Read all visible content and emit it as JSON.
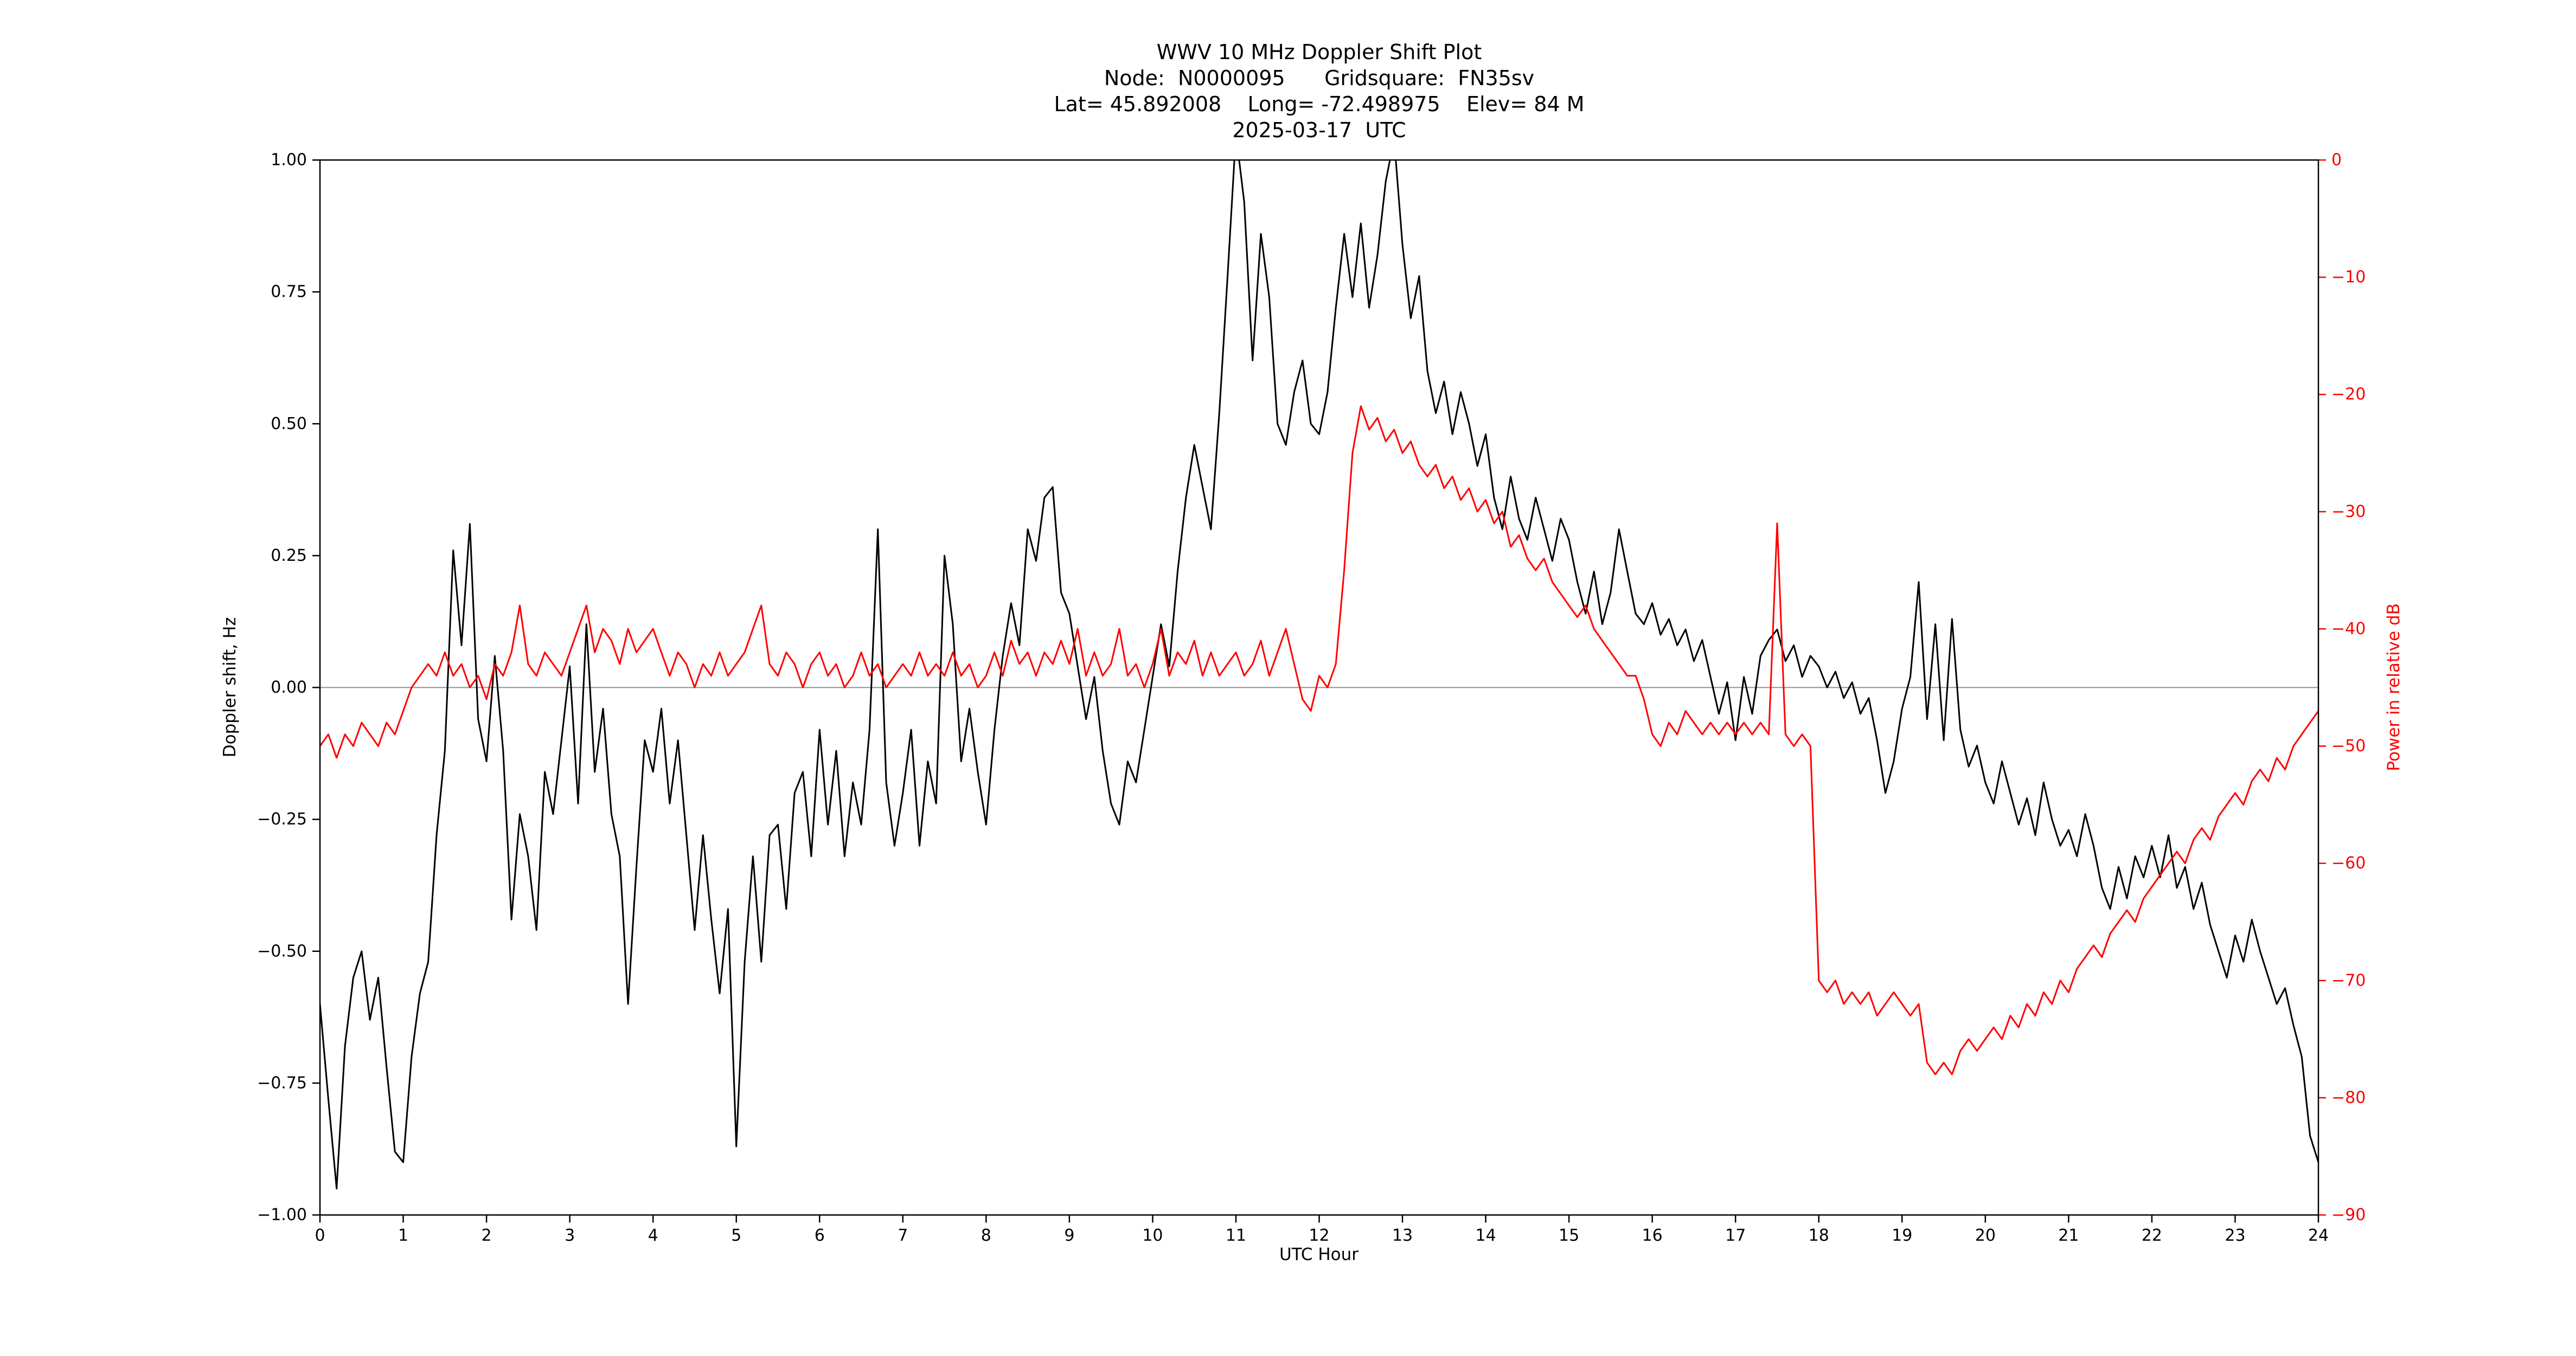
{
  "title": {
    "line1": "WWV 10 MHz Doppler Shift Plot",
    "line2": "Node:  N0000095      Gridsquare:  FN35sv",
    "line3": "Lat= 45.892008    Long= -72.498975    Elev= 84 M",
    "line4": "2025-03-17  UTC"
  },
  "chart_data": {
    "type": "line",
    "title": "WWV 10 MHz Doppler Shift Plot",
    "subtitle_lines": [
      "Node:  N0000095      Gridsquare:  FN35sv",
      "Lat= 45.892008    Long= -72.498975    Elev= 84 M",
      "2025-03-17  UTC"
    ],
    "xlabel": "UTC Hour",
    "ylabel_left": "Doppler shift, Hz",
    "ylabel_right": "Power in relative dB",
    "xlim": [
      0,
      24
    ],
    "ylim_left": [
      -1.0,
      1.0
    ],
    "ylim_right": [
      -90,
      0
    ],
    "grid": false,
    "legend": "none",
    "zero_line_value": 0.0,
    "colors": {
      "doppler": "#000000",
      "power": "#ff0000",
      "zero_line": "#909090",
      "spine": "#000000"
    },
    "x_tick_values": [
      0,
      1,
      2,
      3,
      4,
      5,
      6,
      7,
      8,
      9,
      10,
      11,
      12,
      13,
      14,
      15,
      16,
      17,
      18,
      19,
      20,
      21,
      22,
      23,
      24
    ],
    "x_tick_labels": [
      "0",
      "1",
      "2",
      "3",
      "4",
      "5",
      "6",
      "7",
      "8",
      "9",
      "10",
      "11",
      "12",
      "13",
      "14",
      "15",
      "16",
      "17",
      "18",
      "19",
      "20",
      "21",
      "22",
      "23",
      "24"
    ],
    "y_left_tick_values": [
      1.0,
      0.75,
      0.5,
      0.25,
      0.0,
      -0.25,
      -0.5,
      -0.75,
      -1.0
    ],
    "y_left_tick_labels": [
      "1.00",
      "0.75",
      "0.50",
      "0.25",
      "0.00",
      "−0.25",
      "−0.50",
      "−0.75",
      "−1.00"
    ],
    "y_right_tick_values": [
      0,
      -10,
      -20,
      -30,
      -40,
      -50,
      -60,
      -70,
      -80,
      -90
    ],
    "y_right_tick_labels": [
      "0",
      "−10",
      "−20",
      "−30",
      "−40",
      "−50",
      "−60",
      "−70",
      "−80",
      "−90"
    ],
    "x": [
      0,
      0.1,
      0.2,
      0.3,
      0.4,
      0.5,
      0.6,
      0.7,
      0.8,
      0.9,
      1,
      1.1,
      1.2,
      1.3,
      1.4,
      1.5,
      1.6,
      1.7,
      1.8,
      1.9,
      2,
      2.1,
      2.2,
      2.3,
      2.4,
      2.5,
      2.6,
      2.7,
      2.8,
      2.9,
      3,
      3.1,
      3.2,
      3.3,
      3.4,
      3.5,
      3.6,
      3.7,
      3.8,
      3.9,
      4,
      4.1,
      4.2,
      4.3,
      4.4,
      4.5,
      4.6,
      4.7,
      4.8,
      4.9,
      5,
      5.1,
      5.2,
      5.3,
      5.4,
      5.5,
      5.6,
      5.7,
      5.8,
      5.9,
      6,
      6.1,
      6.2,
      6.3,
      6.4,
      6.5,
      6.6,
      6.7,
      6.8,
      6.9,
      7,
      7.1,
      7.2,
      7.3,
      7.4,
      7.5,
      7.6,
      7.7,
      7.8,
      7.9,
      8,
      8.1,
      8.2,
      8.3,
      8.4,
      8.5,
      8.6,
      8.7,
      8.8,
      8.9,
      9,
      9.1,
      9.2,
      9.3,
      9.4,
      9.5,
      9.6,
      9.7,
      9.8,
      9.9,
      10,
      10.1,
      10.2,
      10.3,
      10.4,
      10.5,
      10.6,
      10.7,
      10.8,
      10.9,
      11,
      11.1,
      11.2,
      11.3,
      11.4,
      11.5,
      11.6,
      11.7,
      11.8,
      11.9,
      12,
      12.1,
      12.2,
      12.3,
      12.4,
      12.5,
      12.6,
      12.7,
      12.8,
      12.9,
      13,
      13.1,
      13.2,
      13.3,
      13.4,
      13.5,
      13.6,
      13.7,
      13.8,
      13.9,
      14,
      14.1,
      14.2,
      14.3,
      14.4,
      14.5,
      14.6,
      14.7,
      14.8,
      14.9,
      15,
      15.1,
      15.2,
      15.3,
      15.4,
      15.5,
      15.6,
      15.7,
      15.8,
      15.9,
      16,
      16.1,
      16.2,
      16.3,
      16.4,
      16.5,
      16.6,
      16.7,
      16.8,
      16.9,
      17,
      17.1,
      17.2,
      17.3,
      17.4,
      17.5,
      17.6,
      17.7,
      17.8,
      17.9,
      18,
      18.1,
      18.2,
      18.3,
      18.4,
      18.5,
      18.6,
      18.7,
      18.8,
      18.9,
      19,
      19.1,
      19.2,
      19.3,
      19.4,
      19.5,
      19.6,
      19.7,
      19.8,
      19.9,
      20,
      20.1,
      20.2,
      20.3,
      20.4,
      20.5,
      20.6,
      20.7,
      20.8,
      20.9,
      21,
      21.1,
      21.2,
      21.3,
      21.4,
      21.5,
      21.6,
      21.7,
      21.8,
      21.9,
      22,
      22.1,
      22.2,
      22.3,
      22.4,
      22.5,
      22.6,
      22.7,
      22.8,
      22.9,
      23,
      23.1,
      23.2,
      23.3,
      23.4,
      23.5,
      23.6,
      23.7,
      23.8,
      23.9,
      24
    ],
    "series": [
      {
        "name": "Doppler shift",
        "axis": "left",
        "color": "#000000",
        "values": [
          -0.6,
          -0.78,
          -0.95,
          -0.68,
          -0.55,
          -0.5,
          -0.63,
          -0.55,
          -0.72,
          -0.88,
          -0.9,
          -0.7,
          -0.58,
          -0.52,
          -0.28,
          -0.12,
          0.26,
          0.08,
          0.31,
          -0.06,
          -0.14,
          0.06,
          -0.12,
          -0.44,
          -0.24,
          -0.32,
          -0.46,
          -0.16,
          -0.24,
          -0.1,
          0.04,
          -0.22,
          0.12,
          -0.16,
          -0.04,
          -0.24,
          -0.32,
          -0.6,
          -0.34,
          -0.1,
          -0.16,
          -0.04,
          -0.22,
          -0.1,
          -0.28,
          -0.46,
          -0.28,
          -0.44,
          -0.58,
          -0.42,
          -0.87,
          -0.52,
          -0.32,
          -0.52,
          -0.28,
          -0.26,
          -0.42,
          -0.2,
          -0.16,
          -0.32,
          -0.08,
          -0.26,
          -0.12,
          -0.32,
          -0.18,
          -0.26,
          -0.08,
          0.3,
          -0.18,
          -0.3,
          -0.2,
          -0.08,
          -0.3,
          -0.14,
          -0.22,
          0.25,
          0.12,
          -0.14,
          -0.04,
          -0.16,
          -0.26,
          -0.08,
          0.06,
          0.16,
          0.08,
          0.3,
          0.24,
          0.36,
          0.38,
          0.18,
          0.14,
          0.04,
          -0.06,
          0.02,
          -0.12,
          -0.22,
          -0.26,
          -0.14,
          -0.18,
          -0.08,
          0.02,
          0.12,
          0.04,
          0.22,
          0.36,
          0.46,
          0.38,
          0.3,
          0.52,
          0.78,
          1.05,
          0.92,
          0.62,
          0.86,
          0.74,
          0.5,
          0.46,
          0.56,
          0.62,
          0.5,
          0.48,
          0.56,
          0.72,
          0.86,
          0.74,
          0.88,
          0.72,
          0.82,
          0.96,
          1.04,
          0.84,
          0.7,
          0.78,
          0.6,
          0.52,
          0.58,
          0.48,
          0.56,
          0.5,
          0.42,
          0.48,
          0.36,
          0.3,
          0.4,
          0.32,
          0.28,
          0.36,
          0.3,
          0.24,
          0.32,
          0.28,
          0.2,
          0.14,
          0.22,
          0.12,
          0.18,
          0.3,
          0.22,
          0.14,
          0.12,
          0.16,
          0.1,
          0.13,
          0.08,
          0.11,
          0.05,
          0.09,
          0.02,
          -0.05,
          0.01,
          -0.1,
          0.02,
          -0.05,
          0.06,
          0.09,
          0.11,
          0.05,
          0.08,
          0.02,
          0.06,
          0.04,
          0,
          0.03,
          -0.02,
          0.01,
          -0.05,
          -0.02,
          -0.1,
          -0.2,
          -0.14,
          -0.04,
          0.02,
          0.2,
          -0.06,
          0.12,
          -0.1,
          0.13,
          -0.08,
          -0.15,
          -0.11,
          -0.18,
          -0.22,
          -0.14,
          -0.2,
          -0.26,
          -0.21,
          -0.28,
          -0.18,
          -0.25,
          -0.3,
          -0.27,
          -0.32,
          -0.24,
          -0.3,
          -0.38,
          -0.42,
          -0.34,
          -0.4,
          -0.32,
          -0.36,
          -0.3,
          -0.36,
          -0.28,
          -0.38,
          -0.34,
          -0.42,
          -0.37,
          -0.45,
          -0.5,
          -0.55,
          -0.47,
          -0.52,
          -0.44,
          -0.5,
          -0.55,
          -0.6,
          -0.57,
          -0.64,
          -0.7,
          -0.85,
          -0.9
        ]
      },
      {
        "name": "Power",
        "axis": "right",
        "color": "#ff0000",
        "values": [
          -50,
          -49,
          -51,
          -49,
          -50,
          -48,
          -49,
          -50,
          -48,
          -49,
          -47,
          -45,
          -44,
          -43,
          -44,
          -42,
          -44,
          -43,
          -45,
          -44,
          -46,
          -43,
          -44,
          -42,
          -38,
          -43,
          -44,
          -42,
          -43,
          -44,
          -42,
          -40,
          -38,
          -42,
          -40,
          -41,
          -43,
          -40,
          -42,
          -41,
          -40,
          -42,
          -44,
          -42,
          -43,
          -45,
          -43,
          -44,
          -42,
          -44,
          -43,
          -42,
          -40,
          -38,
          -43,
          -44,
          -42,
          -43,
          -45,
          -43,
          -42,
          -44,
          -43,
          -45,
          -44,
          -42,
          -44,
          -43,
          -45,
          -44,
          -43,
          -44,
          -42,
          -44,
          -43,
          -44,
          -42,
          -44,
          -43,
          -45,
          -44,
          -42,
          -44,
          -41,
          -43,
          -42,
          -44,
          -42,
          -43,
          -41,
          -43,
          -40,
          -44,
          -42,
          -44,
          -43,
          -40,
          -44,
          -43,
          -45,
          -43,
          -40,
          -44,
          -42,
          -43,
          -41,
          -44,
          -42,
          -44,
          -43,
          -42,
          -44,
          -43,
          -41,
          -44,
          -42,
          -40,
          -43,
          -46,
          -47,
          -44,
          -45,
          -43,
          -35,
          -25,
          -21,
          -23,
          -22,
          -24,
          -23,
          -25,
          -24,
          -26,
          -27,
          -26,
          -28,
          -27,
          -29,
          -28,
          -30,
          -29,
          -31,
          -30,
          -33,
          -32,
          -34,
          -35,
          -34,
          -36,
          -37,
          -38,
          -39,
          -38,
          -40,
          -41,
          -42,
          -43,
          -44,
          -44,
          -46,
          -49,
          -50,
          -48,
          -49,
          -47,
          -48,
          -49,
          -48,
          -49,
          -48,
          -49,
          -48,
          -49,
          -48,
          -49,
          -31,
          -49,
          -50,
          -49,
          -50,
          -70,
          -71,
          -70,
          -72,
          -71,
          -72,
          -71,
          -73,
          -72,
          -71,
          -72,
          -73,
          -72,
          -77,
          -78,
          -77,
          -78,
          -76,
          -75,
          -76,
          -75,
          -74,
          -75,
          -73,
          -74,
          -72,
          -73,
          -71,
          -72,
          -70,
          -71,
          -69,
          -68,
          -67,
          -68,
          -66,
          -65,
          -64,
          -65,
          -63,
          -62,
          -61,
          -60,
          -59,
          -60,
          -58,
          -57,
          -58,
          -56,
          -55,
          -54,
          -55,
          -53,
          -52,
          -53,
          -51,
          -52,
          -50,
          -49,
          -48,
          -47
        ]
      }
    ]
  }
}
